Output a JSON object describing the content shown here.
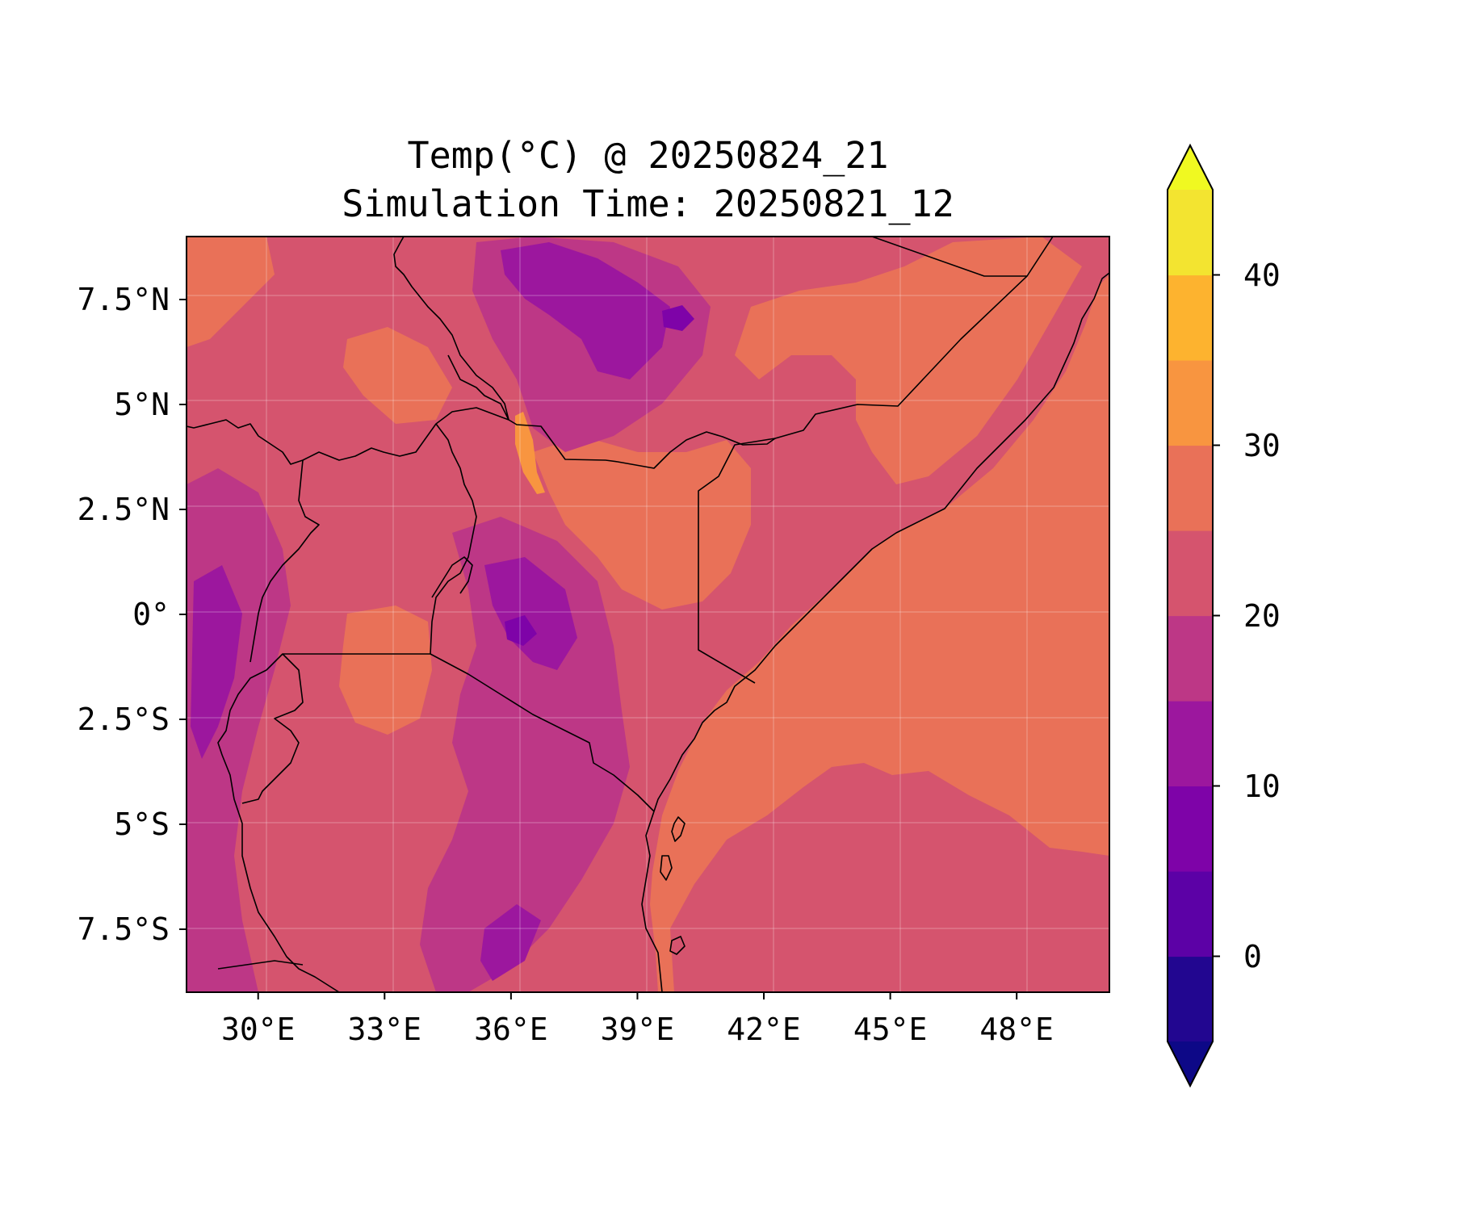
{
  "title": {
    "line1": "Temp(°C) @ 20250824_21",
    "line2": "Simulation Time: 20250821_12"
  },
  "map": {
    "type": "filled-contour-map",
    "variable": "Temp(°C)",
    "extent": {
      "lon_min": 28.3,
      "lon_max": 50.2,
      "lat_min": -9.0,
      "lat_max": 9.0
    },
    "x_ticks": [
      {
        "lon": 30,
        "label": "30°E"
      },
      {
        "lon": 33,
        "label": "33°E"
      },
      {
        "lon": 36,
        "label": "36°E"
      },
      {
        "lon": 39,
        "label": "39°E"
      },
      {
        "lon": 42,
        "label": "42°E"
      },
      {
        "lon": 45,
        "label": "45°E"
      },
      {
        "lon": 48,
        "label": "48°E"
      }
    ],
    "y_ticks": [
      {
        "lat": 7.5,
        "label": "7.5°N"
      },
      {
        "lat": 5,
        "label": "5°N"
      },
      {
        "lat": 2.5,
        "label": "2.5°N"
      },
      {
        "lat": 0,
        "label": "0°"
      },
      {
        "lat": -2.5,
        "label": "2.5°S"
      },
      {
        "lat": -5,
        "label": "5°S"
      },
      {
        "lat": -7.5,
        "label": "7.5°S"
      }
    ],
    "grid": true,
    "borders": true,
    "colors": {
      "land_base": "#d5546e",
      "warm": "#e97158",
      "warmer": "#f89540",
      "cool": "#bd3786",
      "cooler": "#9c179e",
      "coldest": "#7e03a8"
    }
  },
  "colorbar": {
    "label": "",
    "levels": [
      -5,
      0,
      5,
      10,
      15,
      20,
      25,
      30,
      35,
      40,
      45
    ],
    "colors": [
      "#220690",
      "#5c01a6",
      "#7e03a8",
      "#9c179e",
      "#bd3786",
      "#d5546e",
      "#e97158",
      "#f89540",
      "#fdb32f",
      "#f3e430"
    ],
    "under_color": "#0d0887",
    "over_color": "#f0f921",
    "extend": "both",
    "ticks": [
      {
        "value": 0,
        "label": "0"
      },
      {
        "value": 10,
        "label": "10"
      },
      {
        "value": 20,
        "label": "20"
      },
      {
        "value": 30,
        "label": "30"
      },
      {
        "value": 40,
        "label": "40"
      }
    ]
  }
}
